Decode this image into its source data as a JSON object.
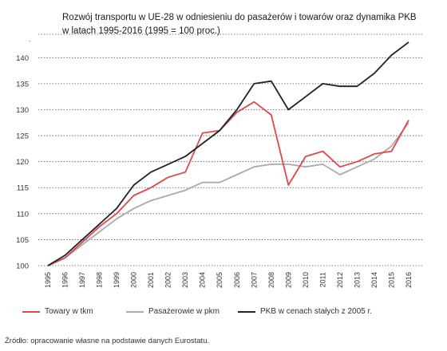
{
  "title": "Rozwój transportu w UE-28 w odniesieniu do pasażerów i towarów oraz dynamika PKB\nw latach 1995-2016 (1995 = 100 proc.)",
  "source": "Źródło: opracowanie własne na podstawie danych Eurostatu.",
  "marker": ".",
  "colors": {
    "goods": "#e0474c",
    "passengers": "#aaaaaa",
    "gdp": "#222222",
    "grid": "#555555"
  },
  "chart_data": {
    "type": "line",
    "title": "Rozwój transportu w UE-28 w odniesieniu do pasażerów i towarów oraz dynamika PKB w latach 1995-2016 (1995 = 100 proc.)",
    "categories": [
      "1995",
      "1996",
      "1997",
      "1998",
      "1999",
      "2000",
      "2001",
      "2002",
      "2003",
      "2004",
      "2005",
      "2006",
      "2007",
      "2008",
      "2009",
      "2010",
      "2011",
      "2012",
      "2013",
      "2014",
      "2015",
      "2016"
    ],
    "ylim": [
      100,
      140
    ],
    "yticks": [
      100,
      105,
      110,
      115,
      120,
      125,
      130,
      135,
      140
    ],
    "grid": true,
    "grid_style": "horizontal dotted",
    "legend_position": "bottom",
    "series": [
      {
        "name": "Towary w tkm",
        "color": "#e0474c",
        "values": [
          100,
          101.5,
          104.5,
          107.5,
          110,
          113.5,
          115,
          117,
          118,
          125.5,
          126,
          129.5,
          131.5,
          129,
          115.5,
          121,
          122,
          119,
          120,
          121.5,
          122,
          128
        ]
      },
      {
        "name": "Pasażerowie w pkm",
        "color": "#aaaaaa",
        "values": [
          100,
          101.5,
          104,
          106.5,
          109,
          111,
          112.5,
          113.5,
          114.5,
          116,
          116,
          117.5,
          119,
          119.5,
          119.5,
          119,
          119.5,
          117.5,
          119,
          120.5,
          123,
          127.5
        ]
      },
      {
        "name": "PKB w cenach stałych z 2005 r.",
        "color": "#222222",
        "values": [
          100,
          102,
          105,
          108,
          111,
          115.5,
          118,
          119.5,
          121,
          123.5,
          126,
          130,
          135,
          135.5,
          130,
          132.5,
          135,
          134.5,
          134.5,
          137,
          140.5,
          143
        ]
      }
    ]
  }
}
